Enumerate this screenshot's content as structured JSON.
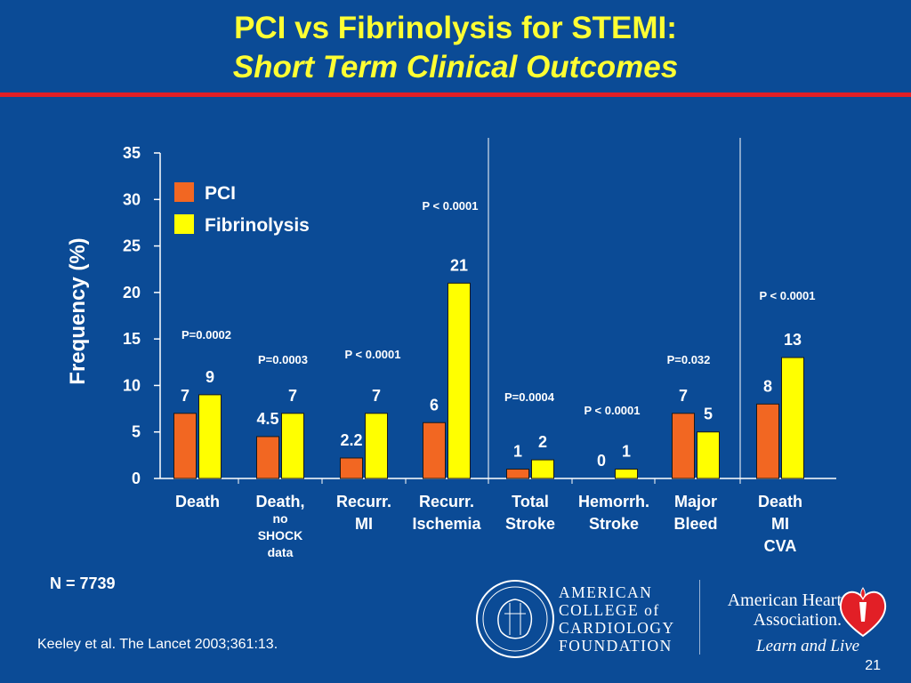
{
  "title": {
    "line1": "PCI vs Fibrinolysis for STEMI:",
    "line2": "Short Term Clinical Outcomes"
  },
  "chart_data": {
    "type": "bar",
    "ylabel": "Frequency (%)",
    "ylim": [
      0,
      35
    ],
    "yticks": [
      0,
      5,
      10,
      15,
      20,
      25,
      30,
      35
    ],
    "categories": [
      [
        "Death"
      ],
      [
        "Death,",
        "no",
        "SHOCK",
        "data"
      ],
      [
        "Recurr.",
        "MI"
      ],
      [
        "Recurr.",
        "Ischemia"
      ],
      [
        "Total",
        "Stroke"
      ],
      [
        "Hemorrh.",
        "Stroke"
      ],
      [
        "Major",
        "Bleed"
      ],
      [
        "Death",
        "MI",
        "CVA"
      ]
    ],
    "series": [
      {
        "name": "PCI",
        "color": "#f26722",
        "values": [
          7,
          4.5,
          2.2,
          6,
          1,
          0,
          7,
          8
        ]
      },
      {
        "name": "Fibrinolysis",
        "color": "#ffff00",
        "values": [
          9,
          7,
          7,
          21,
          2,
          1,
          5,
          13
        ]
      }
    ],
    "p_values": [
      "P=0.0002",
      "P=0.0003",
      "P < 0.0001",
      "P < 0.0001",
      "P=0.0004",
      "P < 0.0001",
      "P=0.032",
      "P < 0.0001"
    ],
    "legend_position": "top-left",
    "grid": false
  },
  "footnote": "N = 7739",
  "citation": "Keeley et al. The Lancet 2003;361:13.",
  "slide_number": "21",
  "logos": {
    "acc": [
      "AMERICAN",
      "COLLEGE of",
      "CARDIOLOGY",
      "FOUNDATION"
    ],
    "aha": [
      "American Heart",
      "Association."
    ],
    "aha_tagline": "Learn and Live"
  }
}
